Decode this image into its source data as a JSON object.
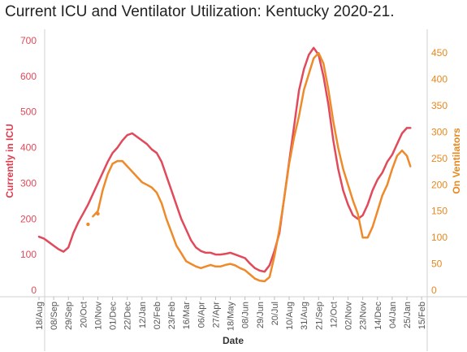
{
  "chart_data": {
    "type": "line",
    "title": "Current ICU and Ventilator Utilization:  Kentucky 2020-21.",
    "xlabel": "Date",
    "ylabel": "Currently in ICU",
    "y2label": "On Ventilators",
    "ylim": [
      0,
      700
    ],
    "y2lim": [
      0,
      475
    ],
    "grid": false,
    "legend": "none",
    "y_ticks": [
      "0",
      "100",
      "200",
      "300",
      "400",
      "500",
      "600",
      "700"
    ],
    "y2_ticks": [
      "0",
      "50",
      "100",
      "150",
      "200",
      "250",
      "300",
      "350",
      "400",
      "450"
    ],
    "x_ticks": [
      "18/Aug",
      "08/Sep",
      "29/Sep",
      "20/Oct",
      "10/Nov",
      "01/Dec",
      "22/Dec",
      "12/Jan",
      "02/Feb",
      "23/Feb",
      "16/Mar",
      "06/Apr",
      "27/Apr",
      "18/May",
      "08/Jun",
      "29/Jun",
      "20/Jul",
      "10/Aug",
      "31/Aug",
      "21/Sep",
      "12/Oct",
      "02/Nov",
      "23/Nov",
      "14/Dec",
      "04/Jan",
      "25/Jan",
      "15/Feb"
    ],
    "series": [
      {
        "axis": "left",
        "color": "#e04a5a",
        "x": [
          "2020-08-18",
          "2020-08-25",
          "2020-09-01",
          "2020-09-08",
          "2020-09-15",
          "2020-09-22",
          "2020-09-29",
          "2020-10-06",
          "2020-10-13",
          "2020-10-20",
          "2020-10-27",
          "2020-11-03",
          "2020-11-10",
          "2020-11-17",
          "2020-11-24",
          "2020-12-01",
          "2020-12-08",
          "2020-12-15",
          "2020-12-22",
          "2020-12-29",
          "2021-01-05",
          "2021-01-12",
          "2021-01-19",
          "2021-01-26",
          "2021-02-02",
          "2021-02-09",
          "2021-02-16",
          "2021-02-23",
          "2021-03-02",
          "2021-03-09",
          "2021-03-16",
          "2021-03-23",
          "2021-03-30",
          "2021-04-06",
          "2021-04-13",
          "2021-04-20",
          "2021-04-27",
          "2021-05-04",
          "2021-05-11",
          "2021-05-18",
          "2021-05-25",
          "2021-06-01",
          "2021-06-08",
          "2021-06-15",
          "2021-06-22",
          "2021-06-29",
          "2021-07-06",
          "2021-07-13",
          "2021-07-20",
          "2021-07-27",
          "2021-08-03",
          "2021-08-10",
          "2021-08-17",
          "2021-08-24",
          "2021-08-31",
          "2021-09-07",
          "2021-09-14",
          "2021-09-21",
          "2021-09-28",
          "2021-10-05",
          "2021-10-12",
          "2021-10-19",
          "2021-10-26",
          "2021-11-02",
          "2021-11-09",
          "2021-11-16",
          "2021-11-23",
          "2021-11-30",
          "2021-12-07",
          "2021-12-14",
          "2021-12-21",
          "2021-12-28",
          "2022-01-04",
          "2022-01-11",
          "2022-01-18",
          "2022-01-25",
          "2022-01-30"
        ],
        "y": [
          150,
          145,
          135,
          125,
          115,
          108,
          120,
          160,
          190,
          215,
          240,
          270,
          300,
          330,
          360,
          385,
          400,
          420,
          435,
          440,
          430,
          420,
          410,
          395,
          385,
          360,
          320,
          280,
          240,
          200,
          170,
          140,
          120,
          110,
          105,
          105,
          100,
          100,
          102,
          105,
          100,
          95,
          90,
          75,
          62,
          55,
          52,
          70,
          110,
          160,
          260,
          360,
          460,
          560,
          620,
          660,
          680,
          660,
          600,
          520,
          420,
          340,
          280,
          240,
          210,
          200,
          210,
          240,
          280,
          310,
          330,
          360,
          380,
          410,
          440,
          455,
          455
        ]
      },
      {
        "axis": "right",
        "color": "#ef8a2a",
        "x": [
          "2020-11-03",
          "2020-11-10",
          "2020-11-17",
          "2020-11-24",
          "2020-12-01",
          "2020-12-08",
          "2020-12-15",
          "2020-12-22",
          "2020-12-29",
          "2021-01-05",
          "2021-01-12",
          "2021-01-19",
          "2021-01-26",
          "2021-02-02",
          "2021-02-09",
          "2021-02-16",
          "2021-02-23",
          "2021-03-02",
          "2021-03-09",
          "2021-03-16",
          "2021-03-23",
          "2021-03-30",
          "2021-04-06",
          "2021-04-13",
          "2021-04-20",
          "2021-04-27",
          "2021-05-04",
          "2021-05-11",
          "2021-05-18",
          "2021-05-25",
          "2021-06-01",
          "2021-06-08",
          "2021-06-15",
          "2021-06-22",
          "2021-06-29",
          "2021-07-06",
          "2021-07-13",
          "2021-07-20",
          "2021-07-27",
          "2021-08-03",
          "2021-08-10",
          "2021-08-17",
          "2021-08-24",
          "2021-08-31",
          "2021-09-07",
          "2021-09-14",
          "2021-09-21",
          "2021-09-28",
          "2021-10-05",
          "2021-10-12",
          "2021-10-19",
          "2021-10-26",
          "2021-11-02",
          "2021-11-09",
          "2021-11-16",
          "2021-11-23",
          "2021-11-30",
          "2021-12-07",
          "2021-12-14",
          "2021-12-21",
          "2021-12-28",
          "2022-01-04",
          "2022-01-11",
          "2022-01-18",
          "2022-01-25",
          "2022-01-30"
        ],
        "y": [
          140,
          150,
          190,
          220,
          240,
          245,
          245,
          235,
          225,
          215,
          205,
          200,
          195,
          185,
          165,
          135,
          110,
          85,
          70,
          55,
          50,
          45,
          42,
          45,
          48,
          45,
          45,
          48,
          50,
          47,
          42,
          38,
          30,
          22,
          18,
          17,
          25,
          65,
          115,
          175,
          240,
          290,
          330,
          380,
          410,
          440,
          450,
          430,
          380,
          320,
          270,
          230,
          200,
          170,
          145,
          100,
          100,
          120,
          150,
          180,
          200,
          230,
          255,
          265,
          255,
          235
        ]
      }
    ],
    "isolated_points": [
      {
        "axis": "right",
        "x": "2020-10-27",
        "y": 125
      },
      {
        "axis": "right",
        "x": "2020-11-10",
        "y": 145
      }
    ]
  }
}
